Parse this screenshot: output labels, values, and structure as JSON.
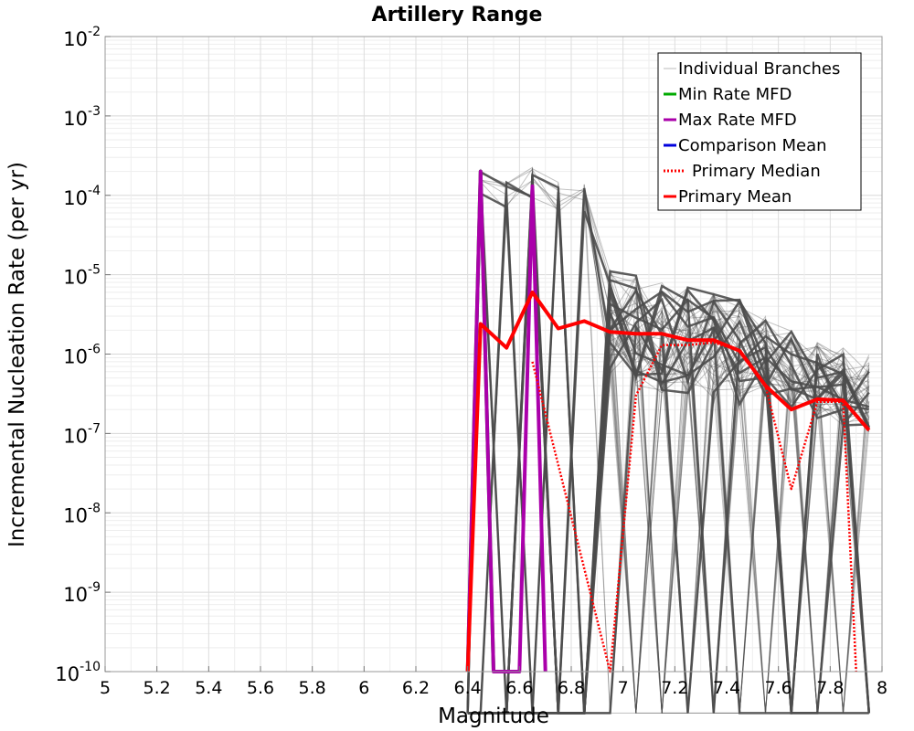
{
  "chart_data": {
    "type": "line",
    "title": "Artillery Range",
    "xlabel": "Magnitude",
    "ylabel": "Incremental Nucleation Rate (per yr)",
    "xlim": [
      5,
      8
    ],
    "ylim": [
      1e-10,
      0.01
    ],
    "yscale": "log",
    "grid": true,
    "legend_position": "top-right",
    "x_ticks": [
      "5",
      "5.2",
      "5.4",
      "5.6",
      "5.8",
      "6",
      "6.2",
      "6.4",
      "6.6",
      "6.8",
      "7",
      "7.2",
      "7.4",
      "7.6",
      "7.8",
      "8"
    ],
    "y_ticks": [
      {
        "base": "10",
        "exp": "-2",
        "value": 0.01
      },
      {
        "base": "10",
        "exp": "-3",
        "value": 0.001
      },
      {
        "base": "10",
        "exp": "-4",
        "value": 0.0001
      },
      {
        "base": "10",
        "exp": "-5",
        "value": 1e-05
      },
      {
        "base": "10",
        "exp": "-6",
        "value": 1e-06
      },
      {
        "base": "10",
        "exp": "-7",
        "value": 1e-07
      },
      {
        "base": "10",
        "exp": "-8",
        "value": 1e-08
      },
      {
        "base": "10",
        "exp": "-9",
        "value": 1e-09
      },
      {
        "base": "10",
        "exp": "-10",
        "value": 1e-10
      }
    ],
    "series": [
      {
        "name": "Individual Branches",
        "color": "#4d4d4d",
        "style": "band",
        "x": [
          6.45,
          6.55,
          6.65,
          6.75,
          6.85,
          6.95,
          7.05,
          7.15,
          7.25,
          7.35,
          7.45,
          7.55,
          7.65,
          7.75,
          7.85,
          7.95
        ],
        "y_max": [
          0.00022,
          0.00015,
          0.00023,
          0.00015,
          0.00014,
          1.2e-05,
          1e-05,
          8e-06,
          7e-06,
          6e-06,
          5e-06,
          3e-06,
          2e-06,
          1.5e-06,
          1.2e-06,
          1e-06
        ]
      },
      {
        "name": "Min Rate MFD",
        "color": "#00aa00",
        "x": [
          6.4,
          6.45,
          6.5
        ],
        "y": [
          1e-10,
          0.0002,
          1e-10
        ]
      },
      {
        "name": "Max Rate MFD",
        "color": "#aa00aa",
        "x": [
          6.4,
          6.45,
          6.5,
          6.6,
          6.65,
          6.7
        ],
        "y": [
          1e-10,
          0.0002,
          1e-10,
          1e-10,
          0.00013,
          1e-10
        ]
      },
      {
        "name": "Comparison Mean",
        "color": "#0000dd",
        "x": [],
        "y": []
      },
      {
        "name": "Primary Median",
        "color": "#ff0000",
        "dashed": true,
        "x": [
          6.65,
          6.95,
          7.05,
          7.15,
          7.25,
          7.35,
          7.45,
          7.55,
          7.65,
          7.75,
          7.85,
          7.9
        ],
        "y": [
          8e-07,
          1e-10,
          3e-07,
          1.3e-06,
          1.3e-06,
          1.4e-06,
          1.1e-06,
          4e-07,
          2e-08,
          2.5e-07,
          2.5e-07,
          1e-10
        ]
      },
      {
        "name": "Primary Mean",
        "color": "#ff0000",
        "x": [
          6.4,
          6.45,
          6.55,
          6.65,
          6.75,
          6.85,
          6.95,
          7.05,
          7.15,
          7.25,
          7.35,
          7.45,
          7.55,
          7.65,
          7.75,
          7.85,
          7.95
        ],
        "y": [
          1e-10,
          2.4e-06,
          1.2e-06,
          6e-06,
          2.1e-06,
          2.6e-06,
          1.9e-06,
          1.8e-06,
          1.8e-06,
          1.5e-06,
          1.5e-06,
          1.1e-06,
          4e-07,
          2e-07,
          2.7e-07,
          2.6e-07,
          1.1e-07
        ]
      }
    ]
  }
}
